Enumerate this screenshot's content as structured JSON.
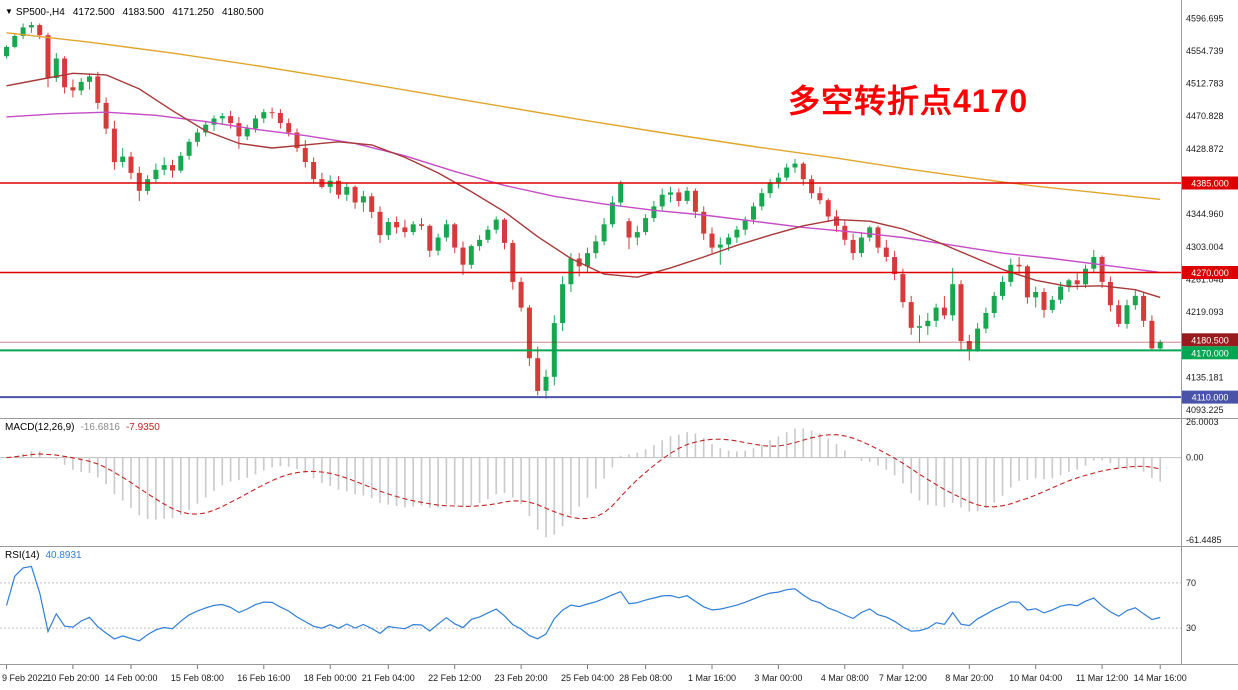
{
  "header": {
    "symbol": "SP500-,H4",
    "open": "4172.500",
    "high": "4183.500",
    "low": "4171.250",
    "close": "4180.500"
  },
  "annotation": {
    "text": "多空转折点4170",
    "color": "#FF0000"
  },
  "indicators": {
    "macd": {
      "label": "MACD(12,26,9)",
      "value": "-16.6816",
      "signal_value": "-7.9350"
    },
    "rsi": {
      "label": "RSI(14)",
      "value": "40.8931"
    }
  },
  "chart_data": {
    "type": "candlestick",
    "symbol": "SP500-",
    "timeframe": "H4",
    "colors": {
      "up": "#17A84F",
      "down": "#D63A3A",
      "background": "#FFFFFF",
      "axis_text": "#1a1a1a",
      "border": "#9a9a9a"
    },
    "price_axis": {
      "top": 4620.2,
      "bottom": 4083.1,
      "labels": [
        {
          "v": 4596.695,
          "t": "4596.695"
        },
        {
          "v": 4554.739,
          "t": "4554.739"
        },
        {
          "v": 4512.783,
          "t": "4512.783"
        },
        {
          "v": 4470.828,
          "t": "4470.828"
        },
        {
          "v": 4428.872,
          "t": "4428.872"
        },
        {
          "v": 4344.96,
          "t": "4344.960"
        },
        {
          "v": 4303.004,
          "t": "4303.004"
        },
        {
          "v": 4261.048,
          "t": "4261.048"
        },
        {
          "v": 4219.093,
          "t": "4219.093"
        },
        {
          "v": 4135.181,
          "t": "4135.181"
        },
        {
          "v": 4093.225,
          "t": "4093.225"
        }
      ]
    },
    "levels": [
      {
        "price": 4385.0,
        "label": "4385.000",
        "color": "#DE0000",
        "width": 1.6
      },
      {
        "price": 4270.0,
        "label": "4270.000",
        "color": "#DE0000",
        "width": 1.6
      },
      {
        "price": 4170.0,
        "label": "4170.000",
        "color": "#00A651",
        "width": 2
      },
      {
        "price": 4110.0,
        "label": "4110.000",
        "color": "#4953A8",
        "width": 2
      }
    ],
    "bid": {
      "price": 4180.5,
      "label": "4180.500",
      "color": "#9A1B1E"
    },
    "ma_lines": [
      {
        "name": "ma-slow-line",
        "color": "#DFA62B",
        "points": [
          [
            0,
            4578
          ],
          [
            10,
            4566
          ],
          [
            20,
            4552
          ],
          [
            30,
            4536
          ],
          [
            40,
            4519
          ],
          [
            50,
            4501
          ],
          [
            60,
            4483
          ],
          [
            70,
            4465
          ],
          [
            80,
            4448
          ],
          [
            90,
            4432
          ],
          [
            100,
            4417
          ],
          [
            108,
            4404
          ],
          [
            116,
            4392
          ],
          [
            124,
            4381
          ],
          [
            132,
            4372
          ],
          [
            139,
            4364
          ]
        ]
      },
      {
        "name": "ma-medium-line",
        "color": "#C64BC6",
        "points": [
          [
            0,
            4470
          ],
          [
            6,
            4474
          ],
          [
            12,
            4476
          ],
          [
            18,
            4472
          ],
          [
            24,
            4464
          ],
          [
            30,
            4454
          ],
          [
            36,
            4446
          ],
          [
            42,
            4436
          ],
          [
            48,
            4420
          ],
          [
            54,
            4400
          ],
          [
            60,
            4382
          ],
          [
            66,
            4368
          ],
          [
            72,
            4358
          ],
          [
            78,
            4350
          ],
          [
            84,
            4344
          ],
          [
            90,
            4336
          ],
          [
            96,
            4328
          ],
          [
            102,
            4322
          ],
          [
            108,
            4315
          ],
          [
            114,
            4305
          ],
          [
            120,
            4295
          ],
          [
            126,
            4288
          ],
          [
            132,
            4280
          ],
          [
            139,
            4270
          ]
        ]
      },
      {
        "name": "ma-fast-line",
        "color": "#A83838",
        "points": [
          [
            0,
            4510
          ],
          [
            4,
            4518
          ],
          [
            8,
            4526
          ],
          [
            12,
            4524
          ],
          [
            16,
            4506
          ],
          [
            20,
            4478
          ],
          [
            24,
            4452
          ],
          [
            28,
            4436
          ],
          [
            32,
            4430
          ],
          [
            36,
            4434
          ],
          [
            40,
            4438
          ],
          [
            44,
            4434
          ],
          [
            48,
            4418
          ],
          [
            52,
            4398
          ],
          [
            56,
            4374
          ],
          [
            60,
            4348
          ],
          [
            64,
            4316
          ],
          [
            68,
            4288
          ],
          [
            72,
            4268
          ],
          [
            76,
            4264
          ],
          [
            80,
            4276
          ],
          [
            84,
            4290
          ],
          [
            88,
            4305
          ],
          [
            92,
            4318
          ],
          [
            96,
            4330
          ],
          [
            100,
            4338
          ],
          [
            104,
            4336
          ],
          [
            108,
            4326
          ],
          [
            112,
            4310
          ],
          [
            116,
            4292
          ],
          [
            120,
            4274
          ],
          [
            124,
            4260
          ],
          [
            128,
            4252
          ],
          [
            132,
            4253
          ],
          [
            136,
            4248
          ],
          [
            139,
            4238
          ]
        ]
      }
    ],
    "candles": [
      [
        4548,
        4562,
        4545,
        4560
      ],
      [
        4560,
        4577,
        4558,
        4574
      ],
      [
        4574,
        4590,
        4570,
        4585
      ],
      [
        4585,
        4592,
        4578,
        4588
      ],
      [
        4588,
        4590,
        4570,
        4575
      ],
      [
        4575,
        4578,
        4508,
        4520
      ],
      [
        4520,
        4552,
        4515,
        4545
      ],
      [
        4545,
        4548,
        4500,
        4508
      ],
      [
        4508,
        4518,
        4495,
        4504
      ],
      [
        4504,
        4520,
        4498,
        4515
      ],
      [
        4515,
        4526,
        4505,
        4522
      ],
      [
        4522,
        4528,
        4480,
        4488
      ],
      [
        4488,
        4495,
        4448,
        4455
      ],
      [
        4455,
        4465,
        4402,
        4412
      ],
      [
        4412,
        4430,
        4405,
        4419
      ],
      [
        4419,
        4425,
        4390,
        4398
      ],
      [
        4398,
        4406,
        4362,
        4375
      ],
      [
        4375,
        4395,
        4370,
        4390
      ],
      [
        4390,
        4410,
        4385,
        4402
      ],
      [
        4402,
        4418,
        4395,
        4408
      ],
      [
        4408,
        4415,
        4392,
        4401
      ],
      [
        4401,
        4425,
        4398,
        4420
      ],
      [
        4420,
        4442,
        4415,
        4438
      ],
      [
        4438,
        4455,
        4432,
        4450
      ],
      [
        4450,
        4465,
        4445,
        4460
      ],
      [
        4460,
        4472,
        4452,
        4468
      ],
      [
        4468,
        4475,
        4460,
        4471
      ],
      [
        4471,
        4478,
        4455,
        4462
      ],
      [
        4462,
        4470,
        4429,
        4445
      ],
      [
        4445,
        4460,
        4440,
        4455
      ],
      [
        4455,
        4472,
        4450,
        4468
      ],
      [
        4468,
        4480,
        4462,
        4476
      ],
      [
        4476,
        4482,
        4468,
        4475
      ],
      [
        4475,
        4480,
        4455,
        4462
      ],
      [
        4462,
        4468,
        4445,
        4450
      ],
      [
        4450,
        4455,
        4425,
        4430
      ],
      [
        4430,
        4440,
        4405,
        4412
      ],
      [
        4412,
        4418,
        4384,
        4390
      ],
      [
        4390,
        4398,
        4378,
        4380
      ],
      [
        4380,
        4395,
        4372,
        4388
      ],
      [
        4388,
        4394,
        4365,
        4370
      ],
      [
        4370,
        4385,
        4362,
        4380
      ],
      [
        4380,
        4382,
        4352,
        4360
      ],
      [
        4360,
        4375,
        4348,
        4368
      ],
      [
        4368,
        4372,
        4340,
        4348
      ],
      [
        4348,
        4355,
        4308,
        4318
      ],
      [
        4318,
        4340,
        4312,
        4335
      ],
      [
        4335,
        4342,
        4320,
        4328
      ],
      [
        4328,
        4338,
        4315,
        4322
      ],
      [
        4322,
        4336,
        4318,
        4332
      ],
      [
        4332,
        4340,
        4325,
        4330
      ],
      [
        4330,
        4332,
        4290,
        4298
      ],
      [
        4298,
        4320,
        4292,
        4315
      ],
      [
        4315,
        4338,
        4310,
        4332
      ],
      [
        4332,
        4334,
        4295,
        4302
      ],
      [
        4302,
        4310,
        4267,
        4280
      ],
      [
        4280,
        4306,
        4275,
        4304
      ],
      [
        4304,
        4318,
        4298,
        4312
      ],
      [
        4312,
        4330,
        4308,
        4325
      ],
      [
        4325,
        4342,
        4320,
        4338
      ],
      [
        4338,
        4340,
        4300,
        4308
      ],
      [
        4308,
        4312,
        4248,
        4258
      ],
      [
        4258,
        4264,
        4220,
        4225
      ],
      [
        4225,
        4228,
        4150,
        4160
      ],
      [
        4160,
        4175,
        4112,
        4118
      ],
      [
        4118,
        4145,
        4108,
        4136
      ],
      [
        4136,
        4215,
        4125,
        4205
      ],
      [
        4205,
        4265,
        4195,
        4255
      ],
      [
        4255,
        4295,
        4245,
        4288
      ],
      [
        4288,
        4295,
        4265,
        4278
      ],
      [
        4278,
        4302,
        4270,
        4295
      ],
      [
        4295,
        4318,
        4288,
        4310
      ],
      [
        4310,
        4340,
        4305,
        4332
      ],
      [
        4332,
        4368,
        4328,
        4360
      ],
      [
        4360,
        4388,
        4355,
        4384
      ],
      [
        4336,
        4340,
        4300,
        4315
      ],
      [
        4315,
        4330,
        4305,
        4322
      ],
      [
        4322,
        4345,
        4318,
        4340
      ],
      [
        4340,
        4362,
        4335,
        4355
      ],
      [
        4355,
        4378,
        4350,
        4370
      ],
      [
        4370,
        4380,
        4360,
        4373
      ],
      [
        4373,
        4378,
        4355,
        4362
      ],
      [
        4362,
        4380,
        4358,
        4375
      ],
      [
        4375,
        4378,
        4340,
        4348
      ],
      [
        4348,
        4355,
        4312,
        4320
      ],
      [
        4320,
        4328,
        4295,
        4302
      ],
      [
        4302,
        4315,
        4280,
        4306
      ],
      [
        4306,
        4320,
        4298,
        4315
      ],
      [
        4315,
        4330,
        4308,
        4325
      ],
      [
        4325,
        4342,
        4318,
        4338
      ],
      [
        4338,
        4360,
        4332,
        4355
      ],
      [
        4355,
        4378,
        4350,
        4372
      ],
      [
        4372,
        4390,
        4366,
        4386
      ],
      [
        4386,
        4398,
        4378,
        4392
      ],
      [
        4392,
        4410,
        4388,
        4405
      ],
      [
        4405,
        4416,
        4398,
        4410
      ],
      [
        4410,
        4412,
        4382,
        4390
      ],
      [
        4390,
        4395,
        4365,
        4372
      ],
      [
        4372,
        4380,
        4358,
        4363
      ],
      [
        4363,
        4365,
        4335,
        4342
      ],
      [
        4342,
        4350,
        4322,
        4330
      ],
      [
        4330,
        4338,
        4305,
        4312
      ],
      [
        4312,
        4320,
        4286,
        4295
      ],
      [
        4295,
        4322,
        4290,
        4315
      ],
      [
        4315,
        4330,
        4310,
        4328
      ],
      [
        4328,
        4330,
        4295,
        4302
      ],
      [
        4302,
        4312,
        4284,
        4290
      ],
      [
        4290,
        4298,
        4260,
        4268
      ],
      [
        4268,
        4275,
        4225,
        4232
      ],
      [
        4232,
        4240,
        4190,
        4199
      ],
      [
        4199,
        4215,
        4180,
        4201
      ],
      [
        4201,
        4218,
        4190,
        4208
      ],
      [
        4208,
        4230,
        4200,
        4225
      ],
      [
        4225,
        4240,
        4210,
        4215
      ],
      [
        4215,
        4276,
        4208,
        4255
      ],
      [
        4255,
        4260,
        4170,
        4182
      ],
      [
        4182,
        4190,
        4157,
        4171
      ],
      [
        4171,
        4205,
        4168,
        4198
      ],
      [
        4198,
        4225,
        4192,
        4218
      ],
      [
        4218,
        4245,
        4212,
        4240
      ],
      [
        4240,
        4265,
        4235,
        4258
      ],
      [
        4258,
        4288,
        4252,
        4280
      ],
      [
        4280,
        4290,
        4268,
        4278
      ],
      [
        4278,
        4280,
        4230,
        4238
      ],
      [
        4238,
        4252,
        4225,
        4245
      ],
      [
        4245,
        4250,
        4212,
        4222
      ],
      [
        4222,
        4240,
        4218,
        4235
      ],
      [
        4235,
        4258,
        4230,
        4252
      ],
      [
        4252,
        4262,
        4245,
        4260
      ],
      [
        4260,
        4270,
        4248,
        4255
      ],
      [
        4255,
        4280,
        4250,
        4275
      ],
      [
        4275,
        4299,
        4270,
        4290
      ],
      [
        4290,
        4292,
        4250,
        4258
      ],
      [
        4258,
        4265,
        4220,
        4228
      ],
      [
        4228,
        4235,
        4200,
        4204
      ],
      [
        4204,
        4235,
        4198,
        4228
      ],
      [
        4228,
        4247,
        4222,
        4240
      ],
      [
        4240,
        4245,
        4200,
        4208
      ],
      [
        4208,
        4215,
        4170,
        4172.5
      ],
      [
        4172.5,
        4183.5,
        4171.25,
        4180.5
      ]
    ],
    "time_axis": {
      "ticks": [
        {
          "bar": 0,
          "label": "9 Feb 2022"
        },
        {
          "bar": 8,
          "label": "10 Feb 20:00"
        },
        {
          "bar": 15,
          "label": "14 Feb 00:00"
        },
        {
          "bar": 23,
          "label": "15 Feb 08:00"
        },
        {
          "bar": 31,
          "label": "16 Feb 16:00"
        },
        {
          "bar": 39,
          "label": "18 Feb 00:00"
        },
        {
          "bar": 46,
          "label": "21 Feb 04:00"
        },
        {
          "bar": 54,
          "label": "22 Feb 12:00"
        },
        {
          "bar": 62,
          "label": "23 Feb 20:00"
        },
        {
          "bar": 70,
          "label": "25 Feb 04:00"
        },
        {
          "bar": 77,
          "label": "28 Feb 08:00"
        },
        {
          "bar": 85,
          "label": "1 Mar 16:00"
        },
        {
          "bar": 93,
          "label": "3 Mar 00:00"
        },
        {
          "bar": 101,
          "label": "4 Mar 08:00"
        },
        {
          "bar": 108,
          "label": "7 Mar 12:00"
        },
        {
          "bar": 116,
          "label": "8 Mar 20:00"
        },
        {
          "bar": 124,
          "label": "10 Mar 04:00"
        },
        {
          "bar": 132,
          "label": "11 Mar 12:00"
        },
        {
          "bar": 139,
          "label": "14 Mar 16:00"
        }
      ]
    },
    "macd": {
      "fast": 12,
      "slow": 26,
      "signal": 9,
      "scale_max": 26.0003,
      "scale_min": -61.4485,
      "axis_labels": [
        {
          "v": 26.0003,
          "t": "26.0003"
        },
        {
          "v": 0,
          "t": "0.00"
        },
        {
          "v": -61.4485,
          "t": "-61.4485"
        }
      ],
      "hist_color": "#C9C9C9",
      "signal_color": "#C62222",
      "zero_color": "#C0C0C0"
    },
    "rsi": {
      "period": 14,
      "min": 0,
      "max": 100,
      "levels": [
        {
          "v": 70,
          "t": "70"
        },
        {
          "v": 30,
          "t": "30"
        }
      ],
      "color": "#2F7ED8",
      "level_color": "#C0C0C0"
    }
  }
}
